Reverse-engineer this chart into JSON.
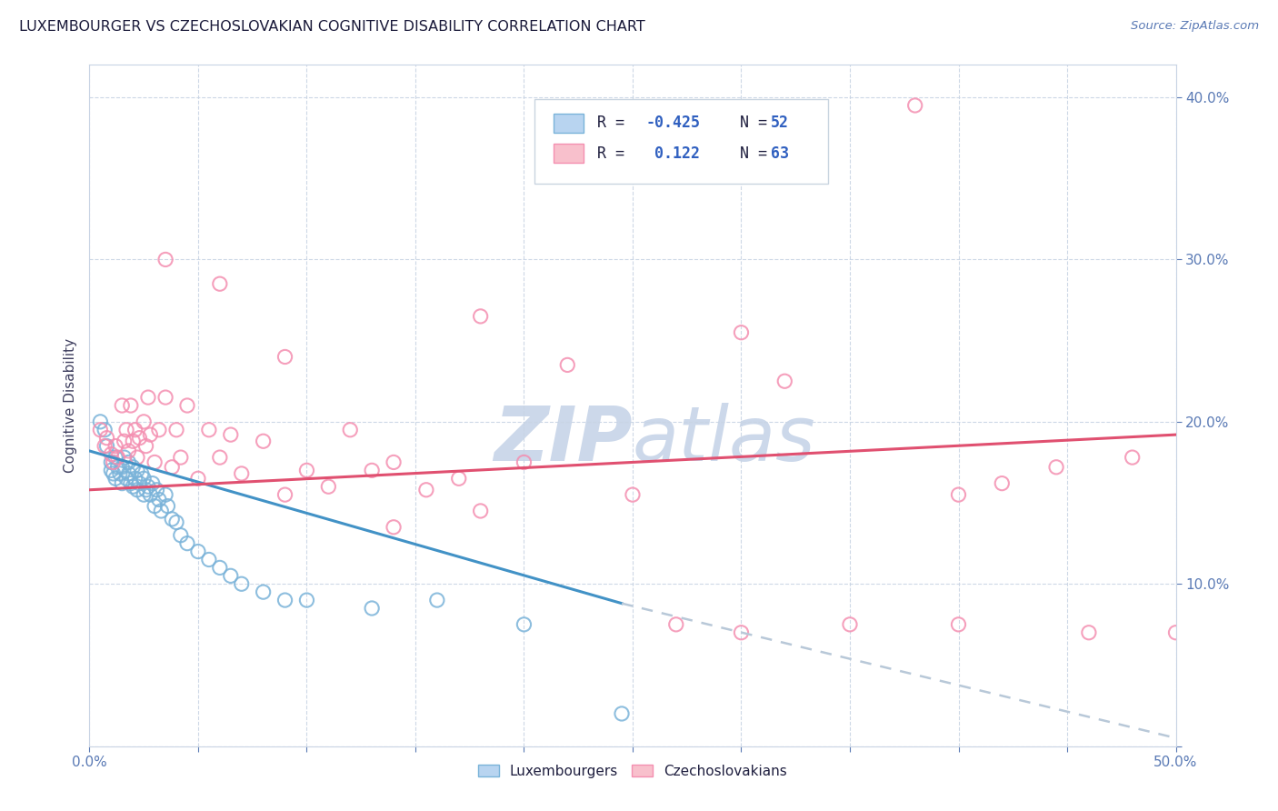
{
  "title": "LUXEMBOURGER VS CZECHOSLOVAKIAN COGNITIVE DISABILITY CORRELATION CHART",
  "source": "Source: ZipAtlas.com",
  "ylabel": "Cognitive Disability",
  "y_tick_positions": [
    0.0,
    0.1,
    0.2,
    0.3,
    0.4
  ],
  "y_tick_labels": [
    "",
    "10.0%",
    "20.0%",
    "30.0%",
    "40.0%"
  ],
  "x_min": 0.0,
  "x_max": 0.5,
  "y_min": 0.0,
  "y_max": 0.42,
  "blue_color": "#7ab3d9",
  "pink_color": "#f48fb1",
  "trend_blue_color": "#4292c6",
  "trend_pink_color": "#e05070",
  "dashed_color": "#b8c8d8",
  "watermark_color": "#ccd8ea",
  "legend_box_color": "#e8eef5",
  "legend_border_color": "#c8d4e0",
  "luxembourgers_x": [
    0.005,
    0.007,
    0.008,
    0.01,
    0.01,
    0.011,
    0.012,
    0.012,
    0.013,
    0.014,
    0.015,
    0.015,
    0.016,
    0.017,
    0.018,
    0.018,
    0.019,
    0.02,
    0.02,
    0.021,
    0.022,
    0.022,
    0.023,
    0.024,
    0.025,
    0.025,
    0.026,
    0.027,
    0.028,
    0.029,
    0.03,
    0.031,
    0.032,
    0.033,
    0.035,
    0.036,
    0.038,
    0.04,
    0.042,
    0.045,
    0.05,
    0.055,
    0.06,
    0.065,
    0.07,
    0.08,
    0.09,
    0.1,
    0.13,
    0.16,
    0.2,
    0.245
  ],
  "luxembourgers_y": [
    0.2,
    0.195,
    0.185,
    0.175,
    0.17,
    0.168,
    0.165,
    0.178,
    0.172,
    0.168,
    0.162,
    0.172,
    0.178,
    0.165,
    0.168,
    0.175,
    0.162,
    0.16,
    0.172,
    0.165,
    0.158,
    0.17,
    0.162,
    0.168,
    0.155,
    0.165,
    0.158,
    0.16,
    0.155,
    0.162,
    0.148,
    0.158,
    0.152,
    0.145,
    0.155,
    0.148,
    0.14,
    0.138,
    0.13,
    0.125,
    0.12,
    0.115,
    0.11,
    0.105,
    0.1,
    0.095,
    0.09,
    0.09,
    0.085,
    0.09,
    0.075,
    0.02
  ],
  "czechoslovakians_x": [
    0.005,
    0.007,
    0.008,
    0.01,
    0.011,
    0.012,
    0.013,
    0.015,
    0.016,
    0.017,
    0.018,
    0.019,
    0.02,
    0.021,
    0.022,
    0.023,
    0.025,
    0.026,
    0.027,
    0.028,
    0.03,
    0.032,
    0.035,
    0.038,
    0.04,
    0.042,
    0.045,
    0.05,
    0.055,
    0.06,
    0.065,
    0.07,
    0.08,
    0.09,
    0.1,
    0.11,
    0.12,
    0.13,
    0.14,
    0.155,
    0.17,
    0.18,
    0.2,
    0.22,
    0.25,
    0.27,
    0.3,
    0.32,
    0.35,
    0.38,
    0.4,
    0.42,
    0.445,
    0.46,
    0.48,
    0.5,
    0.18,
    0.3,
    0.4,
    0.035,
    0.06,
    0.09,
    0.14
  ],
  "czechoslovakians_y": [
    0.195,
    0.185,
    0.19,
    0.18,
    0.175,
    0.185,
    0.178,
    0.21,
    0.188,
    0.195,
    0.182,
    0.21,
    0.188,
    0.195,
    0.178,
    0.19,
    0.2,
    0.185,
    0.215,
    0.192,
    0.175,
    0.195,
    0.215,
    0.172,
    0.195,
    0.178,
    0.21,
    0.165,
    0.195,
    0.178,
    0.192,
    0.168,
    0.188,
    0.155,
    0.17,
    0.16,
    0.195,
    0.17,
    0.175,
    0.158,
    0.165,
    0.145,
    0.175,
    0.235,
    0.155,
    0.075,
    0.07,
    0.225,
    0.075,
    0.395,
    0.075,
    0.162,
    0.172,
    0.07,
    0.178,
    0.07,
    0.265,
    0.255,
    0.155,
    0.3,
    0.285,
    0.24,
    0.135
  ],
  "blue_trend_x": [
    0.0,
    0.245
  ],
  "blue_trend_y": [
    0.182,
    0.088
  ],
  "pink_trend_x": [
    0.0,
    0.5
  ],
  "pink_trend_y": [
    0.158,
    0.192
  ],
  "dashed_trend_x": [
    0.245,
    0.5
  ],
  "dashed_trend_y": [
    0.088,
    0.005
  ]
}
